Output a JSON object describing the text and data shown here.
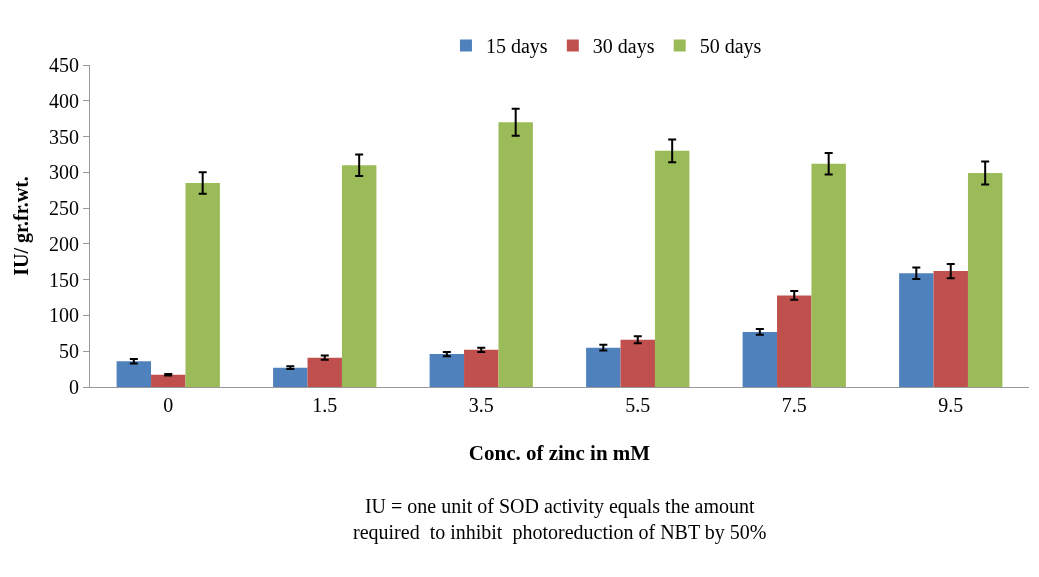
{
  "chart_data": {
    "type": "bar",
    "xlabel": "Conc. of zinc in mM",
    "ylabel": "IU/ gr.fr.wt.",
    "categories": [
      "0",
      "1.5",
      "3.5",
      "5.5",
      "7.5",
      "9.5"
    ],
    "series": [
      {
        "name": "15 days",
        "color": "#4f81bd",
        "values": [
          36,
          27,
          46,
          55,
          77,
          159
        ],
        "errors": [
          3,
          2,
          3,
          4,
          4,
          8
        ]
      },
      {
        "name": "30 days",
        "color": "#c0504d",
        "values": [
          17,
          41,
          52,
          66,
          128,
          162
        ],
        "errors": [
          1,
          3,
          3,
          5,
          6,
          10
        ]
      },
      {
        "name": "50 days",
        "color": "#9bbb59",
        "values": [
          285,
          310,
          370,
          330,
          312,
          299
        ],
        "errors": [
          15,
          15,
          19,
          16,
          15,
          16
        ]
      }
    ],
    "ylim": [
      0,
      450
    ],
    "yticks": [
      0,
      50,
      100,
      150,
      200,
      250,
      300,
      350,
      400,
      450
    ],
    "legend": "top",
    "annotations": [
      "IU = one unit of SOD activity equals the amount\nrequired  to inhibit  photoreduction of NBT by 50%"
    ]
  }
}
